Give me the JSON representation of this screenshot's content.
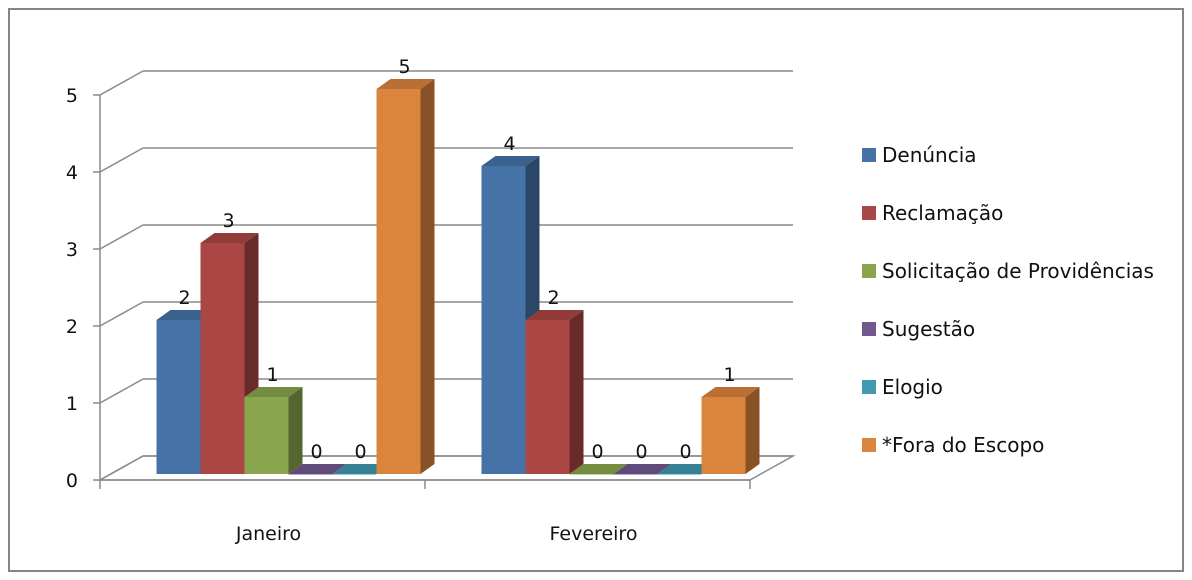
{
  "chart_data": {
    "type": "bar",
    "categories": [
      "Janeiro",
      "Fevereiro"
    ],
    "series": [
      {
        "name": "Denúncia",
        "values": [
          2,
          4
        ],
        "color": "#4572A7"
      },
      {
        "name": "Reclamação",
        "values": [
          3,
          2
        ],
        "color": "#AA4643"
      },
      {
        "name": "Solicitação de Providências",
        "values": [
          1,
          0
        ],
        "color": "#89A54E"
      },
      {
        "name": "Sugestão",
        "values": [
          0,
          0
        ],
        "color": "#71588F"
      },
      {
        "name": "Elogio",
        "values": [
          0,
          0
        ],
        "color": "#4198AF"
      },
      {
        "name": "*Fora do Escopo",
        "values": [
          5,
          1
        ],
        "color": "#DB843D"
      }
    ],
    "title": "",
    "xlabel": "",
    "ylabel": "",
    "ylim": [
      0,
      5
    ],
    "yticks": [
      "0",
      "1",
      "2",
      "3",
      "4",
      "5"
    ],
    "grid": true,
    "style": "3d-clustered-column",
    "legend_position": "right"
  }
}
